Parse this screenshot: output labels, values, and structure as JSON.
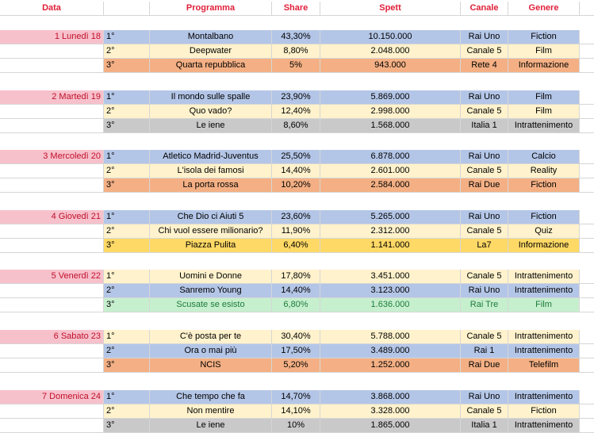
{
  "colors": {
    "header_text": "#e0203a",
    "day_fill": "#f7c1cc",
    "blue": "#b4c6e7",
    "yellow": "#fff2cc",
    "orange": "#f4b084",
    "gray": "#c9c9c9",
    "gold": "#ffd966",
    "green": "#c6efce"
  },
  "header": {
    "data": "Data",
    "programma": "Programma",
    "share": "Share",
    "spett": "Spett",
    "canale": "Canale",
    "genere": "Genere"
  },
  "days": [
    {
      "label": "1 Lunedì 18",
      "rows": [
        {
          "rank": "1°",
          "programma": "Montalbano",
          "share": "43,30%",
          "spett": "10.150.000",
          "canale": "Rai Uno",
          "genere": "Fiction",
          "fill": "blue"
        },
        {
          "rank": "2°",
          "programma": "Deepwater",
          "share": "8,80%",
          "spett": "2.048.000",
          "canale": "Canale 5",
          "genere": "Film",
          "fill": "yellow"
        },
        {
          "rank": "3°",
          "programma": "Quarta repubblica",
          "share": "5%",
          "spett": "943.000",
          "canale": "Rete 4",
          "genere": "Informazione",
          "fill": "orange"
        }
      ]
    },
    {
      "label": "2 Martedì 19",
      "rows": [
        {
          "rank": "1°",
          "programma": "Il mondo sulle spalle",
          "share": "23,90%",
          "spett": "5.869.000",
          "canale": "Rai Uno",
          "genere": "Film",
          "fill": "blue"
        },
        {
          "rank": "2°",
          "programma": "Quo vado?",
          "share": "12,40%",
          "spett": "2.998.000",
          "canale": "Canale 5",
          "genere": "Film",
          "fill": "yellow"
        },
        {
          "rank": "3°",
          "programma": "Le iene",
          "share": "8,60%",
          "spett": "1.568.000",
          "canale": "Italia 1",
          "genere": "Intrattenimento",
          "fill": "gray"
        }
      ]
    },
    {
      "label": "3 Mercoledì 20",
      "rows": [
        {
          "rank": "1°",
          "programma": "Atletico Madrid-Juventus",
          "share": "25,50%",
          "spett": "6.878.000",
          "canale": "Rai Uno",
          "genere": "Calcio",
          "fill": "blue"
        },
        {
          "rank": "2°",
          "programma": "L'isola dei famosi",
          "share": "14,40%",
          "spett": "2.601.000",
          "canale": "Canale 5",
          "genere": "Reality",
          "fill": "yellow"
        },
        {
          "rank": "3°",
          "programma": "La porta rossa",
          "share": "10,20%",
          "spett": "2.584.000",
          "canale": "Rai Due",
          "genere": "Fiction",
          "fill": "orange"
        }
      ]
    },
    {
      "label": "4 Giovedì 21",
      "rows": [
        {
          "rank": "1°",
          "programma": "Che Dio ci Aiuti 5",
          "share": "23,60%",
          "spett": "5.265.000",
          "canale": "Rai Uno",
          "genere": "Fiction",
          "fill": "blue"
        },
        {
          "rank": "2°",
          "programma": "Chi vuol essere milionario?",
          "share": "11,90%",
          "spett": "2.312.000",
          "canale": "Canale 5",
          "genere": "Quiz",
          "fill": "yellow"
        },
        {
          "rank": "3°",
          "programma": "Piazza Pulita",
          "share": "6,40%",
          "spett": "1.141.000",
          "canale": "La7",
          "genere": "Informazione",
          "fill": "gold"
        }
      ]
    },
    {
      "label": "5 Venerdì 22",
      "rows": [
        {
          "rank": "1°",
          "programma": "Uomini e Donne",
          "share": "17,80%",
          "spett": "3.451.000",
          "canale": "Canale 5",
          "genere": "Intrattenimento",
          "fill": "yellow"
        },
        {
          "rank": "2°",
          "programma": "Sanremo Young",
          "share": "14,40%",
          "spett": "3.123.000",
          "canale": "Rai Uno",
          "genere": "Intrattenimento",
          "fill": "blue"
        },
        {
          "rank": "3°",
          "programma": "Scusate se esisto",
          "share": "6,80%",
          "spett": "1.636.000",
          "canale": "Rai Tre",
          "genere": "Film",
          "fill": "green"
        }
      ]
    },
    {
      "label": "6 Sabato 23",
      "rows": [
        {
          "rank": "1°",
          "programma": "C'è posta per te",
          "share": "30,40%",
          "spett": "5.788.000",
          "canale": "Canale 5",
          "genere": "Intrattenimento",
          "fill": "yellow"
        },
        {
          "rank": "2°",
          "programma": "Ora o mai più",
          "share": "17,50%",
          "spett": "3.489.000",
          "canale": "Rai 1",
          "genere": "Intrattenimento",
          "fill": "blue"
        },
        {
          "rank": "3°",
          "programma": "NCIS",
          "share": "5,20%",
          "spett": "1.252.000",
          "canale": "Rai Due",
          "genere": "Telefilm",
          "fill": "orange"
        }
      ]
    },
    {
      "label": "7 Domenica 24",
      "rows": [
        {
          "rank": "1°",
          "programma": "Che tempo che fa",
          "share": "14,70%",
          "spett": "3.868.000",
          "canale": "Rai Uno",
          "genere": "Intrattenimento",
          "fill": "blue"
        },
        {
          "rank": "2°",
          "programma": "Non mentire",
          "share": "14,10%",
          "spett": "3.328.000",
          "canale": "Canale 5",
          "genere": "Fiction",
          "fill": "yellow"
        },
        {
          "rank": "3°",
          "programma": "Le iene",
          "share": "10%",
          "spett": "1.865.000",
          "canale": "Italia 1",
          "genere": "Intrattenimento",
          "fill": "gray"
        }
      ]
    }
  ]
}
